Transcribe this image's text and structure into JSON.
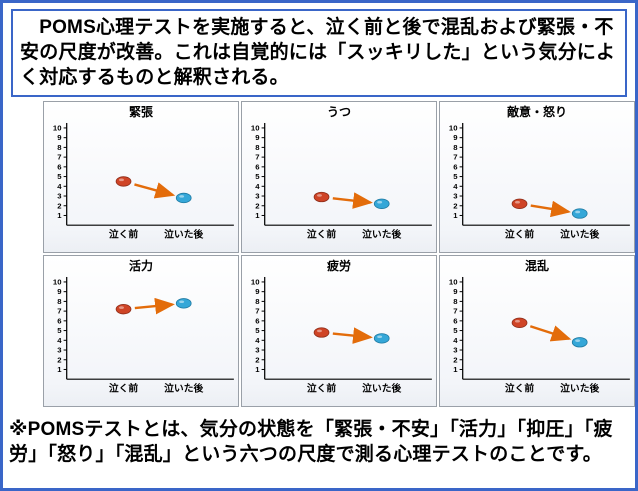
{
  "page": {
    "border_color": "#3a66c8",
    "background": "#ffffff"
  },
  "intro": {
    "text": "　POMS心理テストを実施すると、泣く前と後で混乱および緊張・不安の尺度が改善。これは自覚的には「スッキリした」という気分によく対応するものと解釈される。"
  },
  "footnote": {
    "text": "※POMSテストとは、気分の状態を「緊張・不安」「活力」「抑圧」「疲労」「怒り」「混乱」という六つの尺度で測る心理テストのことです。"
  },
  "style": {
    "before_color": "#cf4426",
    "before_edge": "#8f2e1a",
    "after_color": "#35a7d8",
    "after_edge": "#1f7ba3",
    "arrow_color": "#e36c0a",
    "axis_color": "#000000"
  },
  "chart_data": [
    {
      "type": "scatter",
      "title": "緊張",
      "categories": [
        "泣く前",
        "泣いた後"
      ],
      "values": [
        4.5,
        2.8
      ],
      "ylim": [
        0,
        10
      ],
      "yticks": [
        1,
        2,
        3,
        4,
        5,
        6,
        7,
        8,
        9,
        10
      ],
      "annotation": "arrow-before-to-after",
      "grid": false,
      "legend": "none"
    },
    {
      "type": "scatter",
      "title": "うつ",
      "categories": [
        "泣く前",
        "泣いた後"
      ],
      "values": [
        2.9,
        2.2
      ],
      "ylim": [
        0,
        10
      ],
      "yticks": [
        1,
        2,
        3,
        4,
        5,
        6,
        7,
        8,
        9,
        10
      ],
      "annotation": "arrow-before-to-after",
      "grid": false,
      "legend": "none"
    },
    {
      "type": "scatter",
      "title": "敵意・怒り",
      "categories": [
        "泣く前",
        "泣いた後"
      ],
      "values": [
        2.2,
        1.2
      ],
      "ylim": [
        0,
        10
      ],
      "yticks": [
        1,
        2,
        3,
        4,
        5,
        6,
        7,
        8,
        9,
        10
      ],
      "annotation": "arrow-before-to-after",
      "grid": false,
      "legend": "none"
    },
    {
      "type": "scatter",
      "title": "活力",
      "categories": [
        "泣く前",
        "泣いた後"
      ],
      "values": [
        7.2,
        7.8
      ],
      "ylim": [
        0,
        10
      ],
      "yticks": [
        1,
        2,
        3,
        4,
        5,
        6,
        7,
        8,
        9,
        10
      ],
      "annotation": "arrow-before-to-after",
      "grid": false,
      "legend": "none"
    },
    {
      "type": "scatter",
      "title": "疲労",
      "categories": [
        "泣く前",
        "泣いた後"
      ],
      "values": [
        4.8,
        4.2
      ],
      "ylim": [
        0,
        10
      ],
      "yticks": [
        1,
        2,
        3,
        4,
        5,
        6,
        7,
        8,
        9,
        10
      ],
      "annotation": "arrow-before-to-after",
      "grid": false,
      "legend": "none"
    },
    {
      "type": "scatter",
      "title": "混乱",
      "categories": [
        "泣く前",
        "泣いた後"
      ],
      "values": [
        5.8,
        3.8
      ],
      "ylim": [
        0,
        10
      ],
      "yticks": [
        1,
        2,
        3,
        4,
        5,
        6,
        7,
        8,
        9,
        10
      ],
      "annotation": "arrow-before-to-after",
      "grid": false,
      "legend": "none"
    }
  ]
}
